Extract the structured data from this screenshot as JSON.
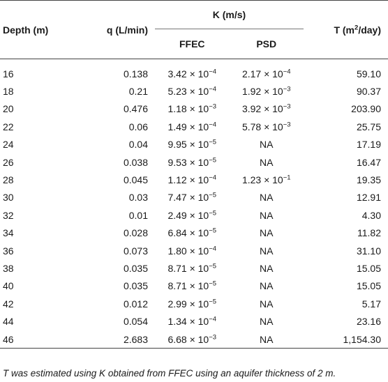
{
  "headers": {
    "depth": "Depth (m)",
    "q": "q (L/min)",
    "k": "K (m/s)",
    "t_pre": "T (m",
    "t_sup": "2",
    "t_post": "/day)",
    "ffec": "FFEC",
    "psd": "PSD"
  },
  "rows": [
    {
      "depth": "16",
      "q": "0.138",
      "ffec": {
        "m": "3.42",
        "e": "−4"
      },
      "psd": {
        "m": "2.17",
        "e": "−4"
      },
      "t": "59.10"
    },
    {
      "depth": "18",
      "q": "0.21",
      "ffec": {
        "m": "5.23",
        "e": "−4"
      },
      "psd": {
        "m": "1.92",
        "e": "−3"
      },
      "t": "90.37"
    },
    {
      "depth": "20",
      "q": "0.476",
      "ffec": {
        "m": "1.18",
        "e": "−3"
      },
      "psd": {
        "m": "3.92",
        "e": "−3"
      },
      "t": "203.90"
    },
    {
      "depth": "22",
      "q": "0.06",
      "ffec": {
        "m": "1.49",
        "e": "−4"
      },
      "psd": {
        "m": "5.78",
        "e": "−3"
      },
      "t": "25.75"
    },
    {
      "depth": "24",
      "q": "0.04",
      "ffec": {
        "m": "9.95",
        "e": "−5"
      },
      "psd": {
        "na": "NA"
      },
      "t": "17.19"
    },
    {
      "depth": "26",
      "q": "0.038",
      "ffec": {
        "m": "9.53",
        "e": "−5"
      },
      "psd": {
        "na": "NA"
      },
      "t": "16.47"
    },
    {
      "depth": "28",
      "q": "0.045",
      "ffec": {
        "m": "1.12",
        "e": "−4"
      },
      "psd": {
        "m": "1.23",
        "e": "−1"
      },
      "t": "19.35"
    },
    {
      "depth": "30",
      "q": "0.03",
      "ffec": {
        "m": "7.47",
        "e": "−5"
      },
      "psd": {
        "na": "NA"
      },
      "t": "12.91"
    },
    {
      "depth": "32",
      "q": "0.01",
      "ffec": {
        "m": "2.49",
        "e": "−5"
      },
      "psd": {
        "na": "NA"
      },
      "t": "4.30"
    },
    {
      "depth": "34",
      "q": "0.028",
      "ffec": {
        "m": "6.84",
        "e": "−5"
      },
      "psd": {
        "na": "NA"
      },
      "t": "11.82"
    },
    {
      "depth": "36",
      "q": "0.073",
      "ffec": {
        "m": "1.80",
        "e": "−4"
      },
      "psd": {
        "na": "NA"
      },
      "t": "31.10"
    },
    {
      "depth": "38",
      "q": "0.035",
      "ffec": {
        "m": "8.71",
        "e": "−5"
      },
      "psd": {
        "na": "NA"
      },
      "t": "15.05"
    },
    {
      "depth": "40",
      "q": "0.035",
      "ffec": {
        "m": "8.71",
        "e": "−5"
      },
      "psd": {
        "na": "NA"
      },
      "t": "15.05"
    },
    {
      "depth": "42",
      "q": "0.012",
      "ffec": {
        "m": "2.99",
        "e": "−5"
      },
      "psd": {
        "na": "NA"
      },
      "t": "5.17"
    },
    {
      "depth": "44",
      "q": "0.054",
      "ffec": {
        "m": "1.34",
        "e": "−4"
      },
      "psd": {
        "na": "NA"
      },
      "t": "23.16"
    },
    {
      "depth": "46",
      "q": "2.683",
      "ffec": {
        "m": "6.68",
        "e": "−3"
      },
      "psd": {
        "na": "NA"
      },
      "t": "1,154.30"
    }
  ],
  "sci_times": "× 10",
  "footnote": "T was estimated using K obtained from FFEC using an aquifer thickness of 2 m."
}
